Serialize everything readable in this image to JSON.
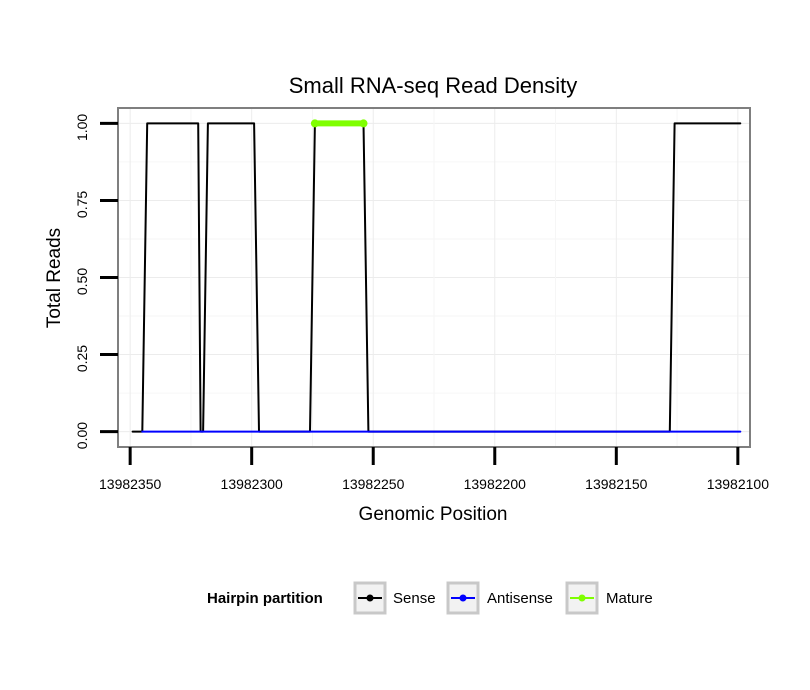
{
  "chart_data": {
    "type": "line",
    "title": "Small RNA-seq Read Density",
    "xlabel": "Genomic Position",
    "ylabel": "Total Reads",
    "x_reversed": true,
    "xlim": [
      13982355,
      13982095
    ],
    "ylim": [
      -0.05,
      1.05
    ],
    "x_ticks": [
      13982350,
      13982300,
      13982250,
      13982200,
      13982150,
      13982100
    ],
    "x_tick_labels": [
      "13982350",
      "13982300",
      "13982250",
      "13982200",
      "13982150",
      "13982100"
    ],
    "y_ticks": [
      0,
      0.25,
      0.5,
      0.75,
      1
    ],
    "y_tick_labels": [
      "0.00",
      "0.25",
      "0.50",
      "0.75",
      "1.00"
    ],
    "grid": true,
    "legend": {
      "title": "Hairpin partition",
      "position": "bottom",
      "entries": [
        {
          "label": "Sense",
          "color": "#000000"
        },
        {
          "label": "Antisense",
          "color": "#0000ff"
        },
        {
          "label": "Mature",
          "color": "#7fff00"
        }
      ]
    },
    "series": [
      {
        "name": "Sense",
        "color": "#000000",
        "x": [
          13982349,
          13982345,
          13982343,
          13982322,
          13982321,
          13982320,
          13982318,
          13982299,
          13982297,
          13982276,
          13982274,
          13982254,
          13982252,
          13982128,
          13982126,
          13982099
        ],
        "y": [
          0,
          0,
          1,
          1,
          0,
          0,
          1,
          1,
          0,
          0,
          1,
          1,
          0,
          0,
          1,
          1
        ]
      },
      {
        "name": "Antisense",
        "color": "#0000ff",
        "x": [
          13982345,
          13982322,
          13982320,
          13982298,
          13982276,
          13982253,
          13982126,
          13982099
        ],
        "y": [
          0,
          0,
          0,
          0,
          0,
          0,
          0,
          0
        ]
      },
      {
        "name": "Mature",
        "color": "#7fff00",
        "x": [
          13982274,
          13982254
        ],
        "y": [
          1,
          1
        ]
      }
    ]
  }
}
